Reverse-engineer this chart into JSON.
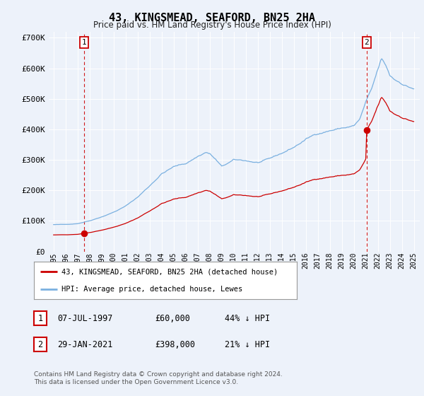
{
  "title": "43, KINGSMEAD, SEAFORD, BN25 2HA",
  "subtitle": "Price paid vs. HM Land Registry's House Price Index (HPI)",
  "background_color": "#edf2fa",
  "hpi_color": "#7ab0e0",
  "price_color": "#cc0000",
  "point1_x": 1997.53,
  "point1_y": 60000,
  "point2_x": 2021.08,
  "point2_y": 398000,
  "ylim": [
    0,
    720000
  ],
  "yticks": [
    0,
    100000,
    200000,
    300000,
    400000,
    500000,
    600000,
    700000
  ],
  "ytick_labels": [
    "£0",
    "£100K",
    "£200K",
    "£300K",
    "£400K",
    "£500K",
    "£600K",
    "£700K"
  ],
  "xmin": 1994.6,
  "xmax": 2025.5,
  "legend_label1": "43, KINGSMEAD, SEAFORD, BN25 2HA (detached house)",
  "legend_label2": "HPI: Average price, detached house, Lewes",
  "table_row1": [
    "1",
    "07-JUL-1997",
    "£60,000",
    "44% ↓ HPI"
  ],
  "table_row2": [
    "2",
    "29-JAN-2021",
    "£398,000",
    "21% ↓ HPI"
  ],
  "footer": "Contains HM Land Registry data © Crown copyright and database right 2024.\nThis data is licensed under the Open Government Licence v3.0."
}
